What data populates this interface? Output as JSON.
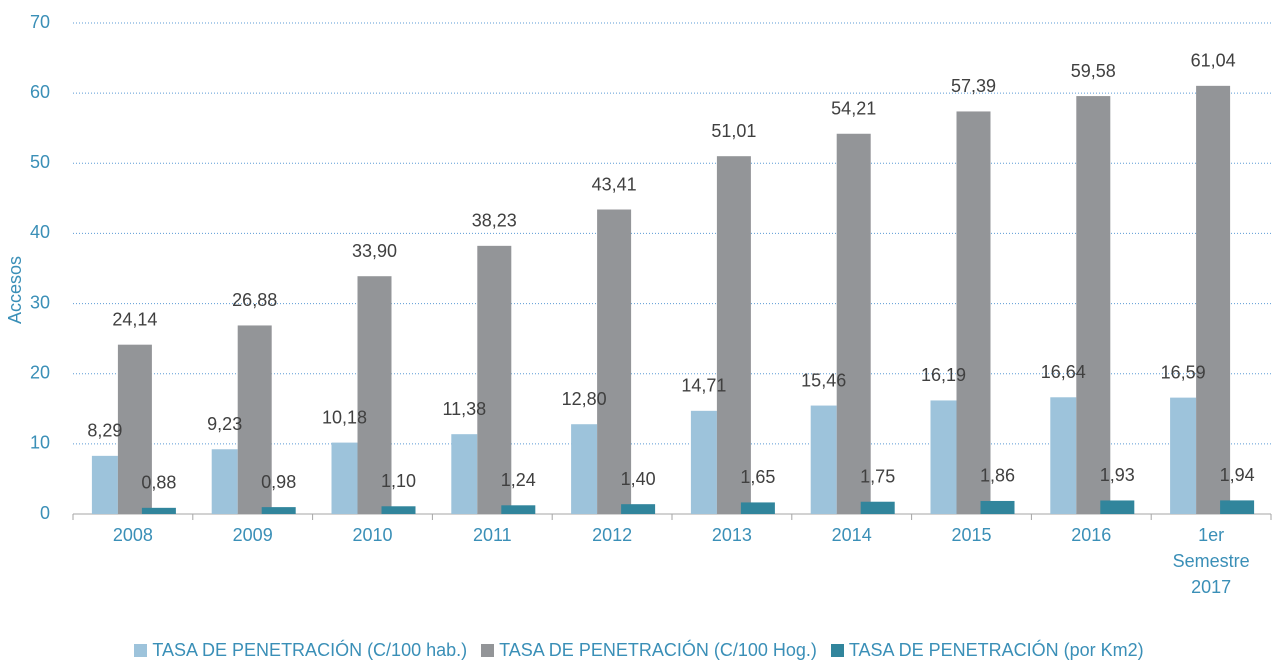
{
  "chart_data": {
    "type": "bar",
    "y_label": "Accesos",
    "categories": [
      "2008",
      "2009",
      "2010",
      "2011",
      "2012",
      "2013",
      "2014",
      "2015",
      "2016",
      "1er Semestre 2017"
    ],
    "series": [
      {
        "name": "TASA DE PENETRACIÓN (C/100 hab.)",
        "color": "#9dc3db",
        "values": [
          8.29,
          9.23,
          10.18,
          11.38,
          12.8,
          14.71,
          15.46,
          16.19,
          16.64,
          16.59
        ],
        "value_labels": [
          "8,29",
          "9,23",
          "10,18",
          "11,38",
          "12,80",
          "14,71",
          "15,46",
          "16,19",
          "16,64",
          "16,59"
        ]
      },
      {
        "name": "TASA DE PENETRACIÓN (C/100 Hog.)",
        "color": "#939598",
        "values": [
          24.14,
          26.88,
          33.9,
          38.23,
          43.41,
          51.01,
          54.21,
          57.39,
          59.58,
          61.04
        ],
        "value_labels": [
          "24,14",
          "26,88",
          "33,90",
          "38,23",
          "43,41",
          "51,01",
          "54,21",
          "57,39",
          "59,58",
          "61,04"
        ]
      },
      {
        "name": "TASA DE PENETRACIÓN (por Km2)",
        "color": "#31859c",
        "values": [
          0.88,
          0.98,
          1.1,
          1.24,
          1.4,
          1.65,
          1.75,
          1.86,
          1.93,
          1.94
        ],
        "value_labels": [
          "0,88",
          "0,98",
          "1,10",
          "1,24",
          "1,40",
          "1,65",
          "1,75",
          "1,86",
          "1,93",
          "1,94"
        ]
      }
    ],
    "ylim": [
      0,
      70
    ],
    "yticks": [
      0,
      10,
      20,
      30,
      40,
      50,
      60,
      70
    ],
    "grid": true,
    "legend": "bottom"
  }
}
